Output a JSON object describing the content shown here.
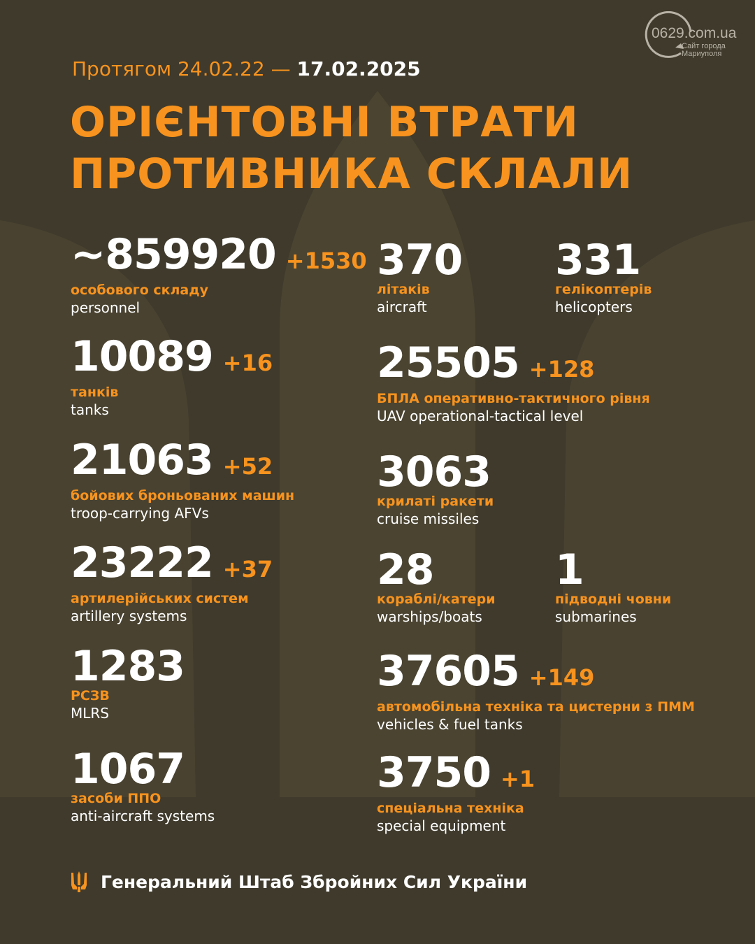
{
  "header": {
    "period_prefix": "Протягом 24.02.22 —",
    "period_end": "17.02.2025",
    "title_line1": "ОРІЄНТОВНІ ВТРАТИ",
    "title_line2": "ПРОТИВНИКА СКЛАЛИ"
  },
  "watermark": {
    "site": "0629.com.ua",
    "tagline_line1": "Сайт города",
    "tagline_line2": "Мариуполя"
  },
  "left": [
    {
      "value": "~859920",
      "delta": "+1530",
      "ua": "особового складу",
      "en": "personnel"
    },
    {
      "value": "10089",
      "delta": "+16",
      "ua": "танків",
      "en": "tanks"
    },
    {
      "value": "21063",
      "delta": "+52",
      "ua": "бойових броньованих машин",
      "en": "troop-carrying AFVs"
    },
    {
      "value": "23222",
      "delta": "+37",
      "ua": "артилерійських систем",
      "en": "artillery systems"
    },
    {
      "value": "1283",
      "delta": "",
      "ua": "РСЗВ",
      "en": "MLRS"
    },
    {
      "value": "1067",
      "delta": "",
      "ua": "засоби ППО",
      "en": "anti-aircraft systems"
    }
  ],
  "right": [
    {
      "value": "370",
      "delta": "",
      "ua": "літаків",
      "en": "aircraft"
    },
    {
      "value": "331",
      "delta": "",
      "ua": "гелікоптерів",
      "en": "helicopters"
    },
    {
      "value": "25505",
      "delta": "+128",
      "ua": "БПЛА оперативно-тактичного рівня",
      "en": "UAV operational-tactical level"
    },
    {
      "value": "3063",
      "delta": "",
      "ua": "крилаті ракети",
      "en": "cruise missiles"
    },
    {
      "value": "28",
      "delta": "",
      "ua": "кораблі/катери",
      "en": "warships/boats"
    },
    {
      "value": "1",
      "delta": "",
      "ua": "підводні човни",
      "en": "submarines"
    },
    {
      "value": "37605",
      "delta": "+149",
      "ua": "автомобільна техніка та цистерни з ПММ",
      "en": "vehicles & fuel tanks"
    },
    {
      "value": "3750",
      "delta": "+1",
      "ua": "спеціальна техніка",
      "en": "special equipment"
    }
  ],
  "footer": {
    "text": "Генеральний Штаб Збройних Сил України",
    "icon": "trident-icon"
  },
  "colors": {
    "background": "#3f3a2c",
    "accent": "#f7931e",
    "text": "#ffffff"
  }
}
